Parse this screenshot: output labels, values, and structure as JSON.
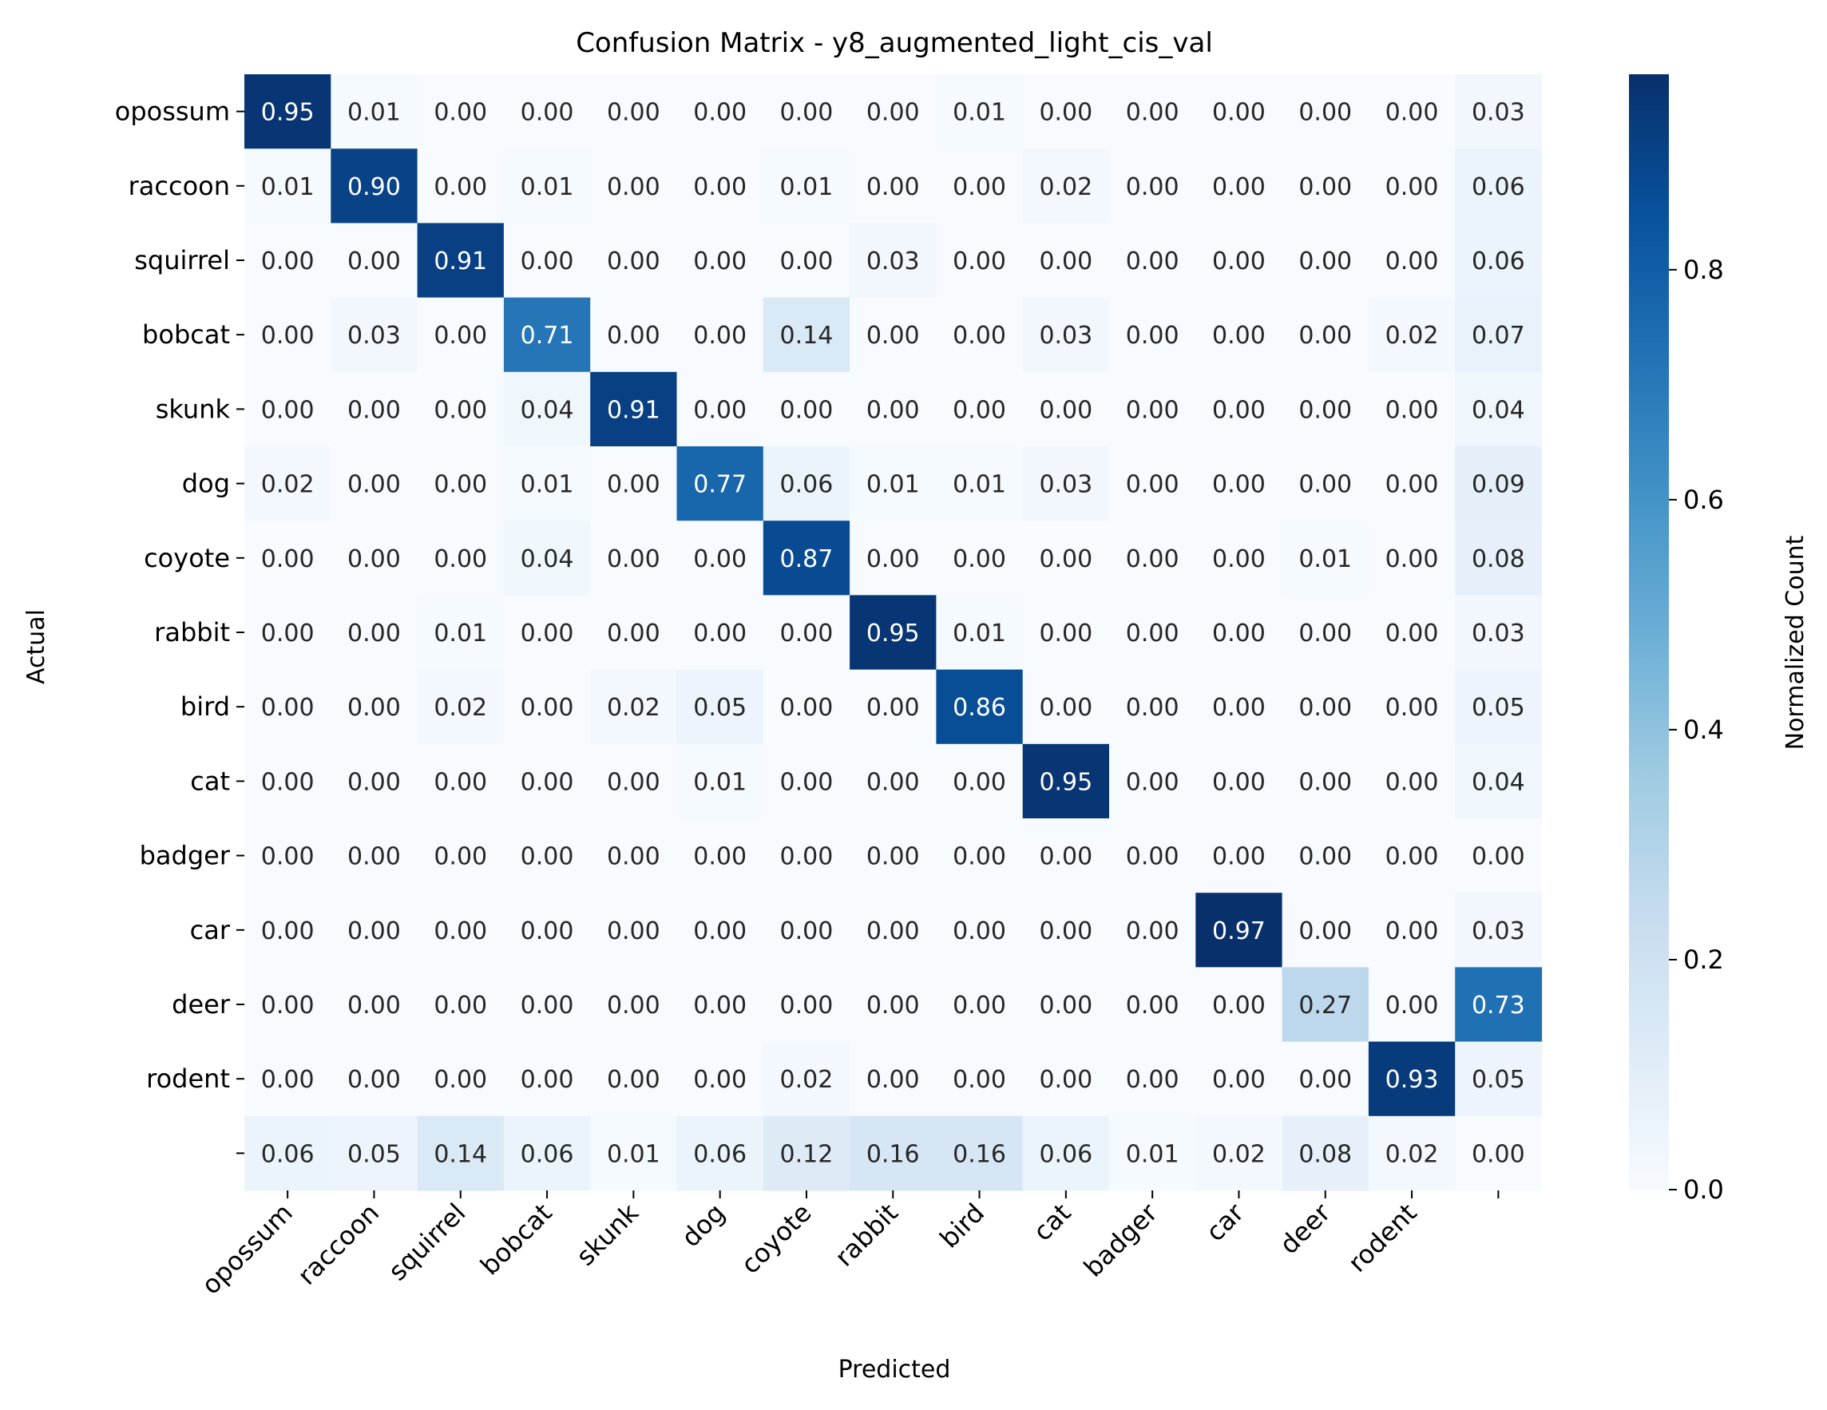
{
  "chart_data": {
    "type": "heatmap",
    "title": "Confusion Matrix - y8_augmented_light_cis_val",
    "xlabel": "Predicted",
    "ylabel": "Actual",
    "row_labels": [
      "opossum",
      "raccoon",
      "squirrel",
      "bobcat",
      "skunk",
      "dog",
      "coyote",
      "rabbit",
      "bird",
      "cat",
      "badger",
      "car",
      "deer",
      "rodent",
      ""
    ],
    "col_labels": [
      "opossum",
      "raccoon",
      "squirrel",
      "bobcat",
      "skunk",
      "dog",
      "coyote",
      "rabbit",
      "bird",
      "cat",
      "badger",
      "car",
      "deer",
      "rodent",
      ""
    ],
    "values": [
      [
        0.95,
        0.01,
        0.0,
        0.0,
        0.0,
        0.0,
        0.0,
        0.0,
        0.01,
        0.0,
        0.0,
        0.0,
        0.0,
        0.0,
        0.03
      ],
      [
        0.01,
        0.9,
        0.0,
        0.01,
        0.0,
        0.0,
        0.01,
        0.0,
        0.0,
        0.02,
        0.0,
        0.0,
        0.0,
        0.0,
        0.06
      ],
      [
        0.0,
        0.0,
        0.91,
        0.0,
        0.0,
        0.0,
        0.0,
        0.03,
        0.0,
        0.0,
        0.0,
        0.0,
        0.0,
        0.0,
        0.06
      ],
      [
        0.0,
        0.03,
        0.0,
        0.71,
        0.0,
        0.0,
        0.14,
        0.0,
        0.0,
        0.03,
        0.0,
        0.0,
        0.0,
        0.02,
        0.07
      ],
      [
        0.0,
        0.0,
        0.0,
        0.04,
        0.91,
        0.0,
        0.0,
        0.0,
        0.0,
        0.0,
        0.0,
        0.0,
        0.0,
        0.0,
        0.04
      ],
      [
        0.02,
        0.0,
        0.0,
        0.01,
        0.0,
        0.77,
        0.06,
        0.01,
        0.01,
        0.03,
        0.0,
        0.0,
        0.0,
        0.0,
        0.09
      ],
      [
        0.0,
        0.0,
        0.0,
        0.04,
        0.0,
        0.0,
        0.87,
        0.0,
        0.0,
        0.0,
        0.0,
        0.0,
        0.01,
        0.0,
        0.08
      ],
      [
        0.0,
        0.0,
        0.01,
        0.0,
        0.0,
        0.0,
        0.0,
        0.95,
        0.01,
        0.0,
        0.0,
        0.0,
        0.0,
        0.0,
        0.03
      ],
      [
        0.0,
        0.0,
        0.02,
        0.0,
        0.02,
        0.05,
        0.0,
        0.0,
        0.86,
        0.0,
        0.0,
        0.0,
        0.0,
        0.0,
        0.05
      ],
      [
        0.0,
        0.0,
        0.0,
        0.0,
        0.0,
        0.01,
        0.0,
        0.0,
        0.0,
        0.95,
        0.0,
        0.0,
        0.0,
        0.0,
        0.04
      ],
      [
        0.0,
        0.0,
        0.0,
        0.0,
        0.0,
        0.0,
        0.0,
        0.0,
        0.0,
        0.0,
        0.0,
        0.0,
        0.0,
        0.0,
        0.0
      ],
      [
        0.0,
        0.0,
        0.0,
        0.0,
        0.0,
        0.0,
        0.0,
        0.0,
        0.0,
        0.0,
        0.0,
        0.97,
        0.0,
        0.0,
        0.03
      ],
      [
        0.0,
        0.0,
        0.0,
        0.0,
        0.0,
        0.0,
        0.0,
        0.0,
        0.0,
        0.0,
        0.0,
        0.0,
        0.27,
        0.0,
        0.73
      ],
      [
        0.0,
        0.0,
        0.0,
        0.0,
        0.0,
        0.0,
        0.02,
        0.0,
        0.0,
        0.0,
        0.0,
        0.0,
        0.0,
        0.93,
        0.05
      ],
      [
        0.06,
        0.05,
        0.14,
        0.06,
        0.01,
        0.06,
        0.12,
        0.16,
        0.16,
        0.06,
        0.01,
        0.02,
        0.08,
        0.02,
        0.0
      ]
    ],
    "value_format": "0.00",
    "colormap": "Blues",
    "colorbar": {
      "label": "Normalized Count",
      "range": [
        0.0,
        0.97
      ],
      "ticks": [
        0.0,
        0.2,
        0.4,
        0.6,
        0.8
      ],
      "tick_labels": [
        "0.0",
        "0.2",
        "0.4",
        "0.6",
        "0.8"
      ]
    }
  }
}
